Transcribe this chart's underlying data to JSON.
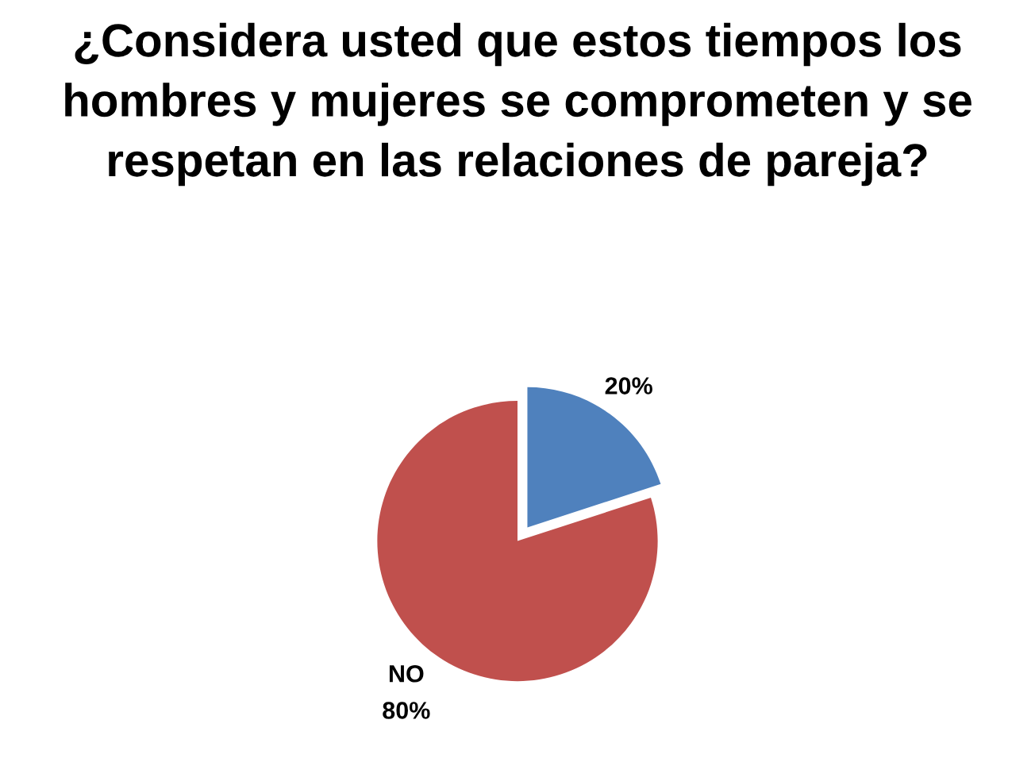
{
  "chart_data": {
    "type": "pie",
    "title": "¿Considera usted que estos tiempos los hombres y mujeres se comprometen y se respetan en las relaciones de pareja?",
    "categories": [
      null,
      "NO"
    ],
    "values": [
      20,
      80
    ],
    "colors": [
      "#4f81bd",
      "#c0504d"
    ],
    "value_labels": [
      "20%",
      "80%"
    ],
    "legend": false
  }
}
